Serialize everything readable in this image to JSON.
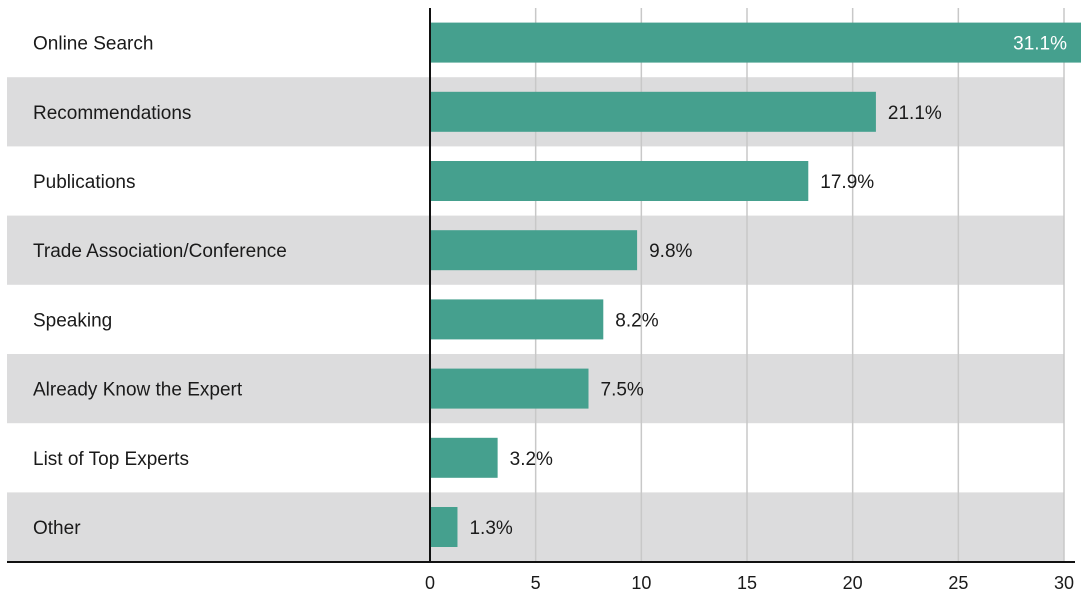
{
  "chart_data": {
    "type": "bar",
    "orientation": "horizontal",
    "categories": [
      "Online Search",
      "Recommendations",
      "Publications",
      "Trade Association/Conference",
      "Speaking",
      "Already Know the Expert",
      "List of Top Experts",
      "Other"
    ],
    "values": [
      31.1,
      21.1,
      17.9,
      9.8,
      8.2,
      7.5,
      3.2,
      1.3
    ],
    "value_labels": [
      "31.1%",
      "21.1%",
      "17.9%",
      "9.8%",
      "8.2%",
      "7.5%",
      "3.2%",
      "1.3%"
    ],
    "xlim": [
      0,
      30
    ],
    "xticks": [
      0,
      5,
      10,
      15,
      20,
      25,
      30
    ],
    "xtick_labels": [
      "0",
      "5",
      "10",
      "15",
      "20",
      "25",
      "30"
    ],
    "grid": true,
    "legend": false,
    "colors": {
      "bar": "#45a08e",
      "band": "#dcdcdd",
      "grid": "#c8c8c8",
      "axis": "#111111",
      "text": "#1a1a1a",
      "label_inside": "#ffffff"
    }
  }
}
